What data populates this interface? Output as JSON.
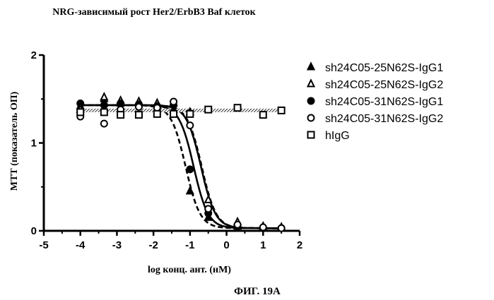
{
  "chart_data": {
    "type": "scatter",
    "title": "NRG-зависимый рост Her2/ErbB3 Baf клеток",
    "xlabel": "log конц. ант. (нМ)",
    "ylabel": "МТТ (показатель ОП)",
    "xlim": [
      -5,
      2
    ],
    "ylim": [
      0,
      2
    ],
    "xticks": [
      "-5",
      "-4",
      "-3",
      "-2",
      "-1",
      "0",
      "1",
      "2"
    ],
    "yticks": [
      "0",
      "1",
      "2"
    ],
    "legend_position": "right",
    "caption": "ФИГ. 19А",
    "series": [
      {
        "name": "sh24C05-25N62S-IgG1",
        "marker": "filled-triangle",
        "line": "dashed",
        "curve": {
          "top": 1.43,
          "bottom": 0.03,
          "log_ec50": -1.12,
          "hill": 2.2
        },
        "x": [
          -4,
          -3.35,
          -2.9,
          -2.4,
          -1.9,
          -1.45,
          -1.0,
          -0.5,
          0.3,
          1.0,
          1.5
        ],
        "y": [
          1.42,
          1.5,
          1.45,
          1.46,
          1.45,
          1.38,
          0.45,
          0.15,
          0.05,
          0.03,
          0.03
        ]
      },
      {
        "name": "sh24C05-25N62S-IgG2",
        "marker": "open-triangle",
        "line": "dashed",
        "curve": {
          "top": 1.43,
          "bottom": 0.03,
          "log_ec50": -0.68,
          "hill": 2.2
        },
        "x": [
          -4,
          -3.35,
          -2.9,
          -2.4,
          -1.9,
          -1.45,
          -1.0,
          -0.5,
          0.3,
          1.0,
          1.5
        ],
        "y": [
          1.38,
          1.52,
          1.48,
          1.47,
          1.45,
          1.45,
          1.35,
          0.35,
          0.1,
          0.05,
          0.04
        ]
      },
      {
        "name": "sh24C05-31N62S-IgG1",
        "marker": "filled-circle",
        "line": "solid",
        "curve": {
          "top": 1.43,
          "bottom": 0.03,
          "log_ec50": -0.9,
          "hill": 2.2
        },
        "x": [
          -4,
          -3.35,
          -2.9,
          -2.4,
          -1.9,
          -1.45,
          -1.0,
          -0.5,
          0.3,
          1.0,
          1.5
        ],
        "y": [
          1.45,
          1.43,
          1.45,
          1.44,
          1.42,
          1.43,
          0.7,
          0.2,
          0.05,
          0.03,
          0.03
        ]
      },
      {
        "name": "sh24C05-31N62S-IgG2",
        "marker": "open-circle",
        "line": "solid",
        "curve": {
          "top": 1.43,
          "bottom": 0.03,
          "log_ec50": -0.7,
          "hill": 2.2
        },
        "x": [
          -4,
          -3.35,
          -2.9,
          -2.4,
          -1.9,
          -1.45,
          -1.0,
          -0.5,
          0.3,
          1.0,
          1.5
        ],
        "y": [
          1.3,
          1.22,
          1.38,
          1.41,
          1.4,
          1.47,
          1.2,
          0.25,
          0.07,
          0.04,
          0.03
        ]
      },
      {
        "name": "hIgG",
        "marker": "open-square",
        "line": "hatched",
        "curve": {
          "top": 1.37,
          "bottom": 1.37,
          "log_ec50": 0,
          "hill": 1
        },
        "x": [
          -4,
          -3.35,
          -2.9,
          -2.4,
          -1.9,
          -1.45,
          -1.0,
          -0.5,
          0.3,
          1.0,
          1.5
        ],
        "y": [
          1.35,
          1.35,
          1.32,
          1.32,
          1.33,
          1.33,
          1.33,
          1.38,
          1.4,
          1.32,
          1.37
        ]
      }
    ]
  }
}
